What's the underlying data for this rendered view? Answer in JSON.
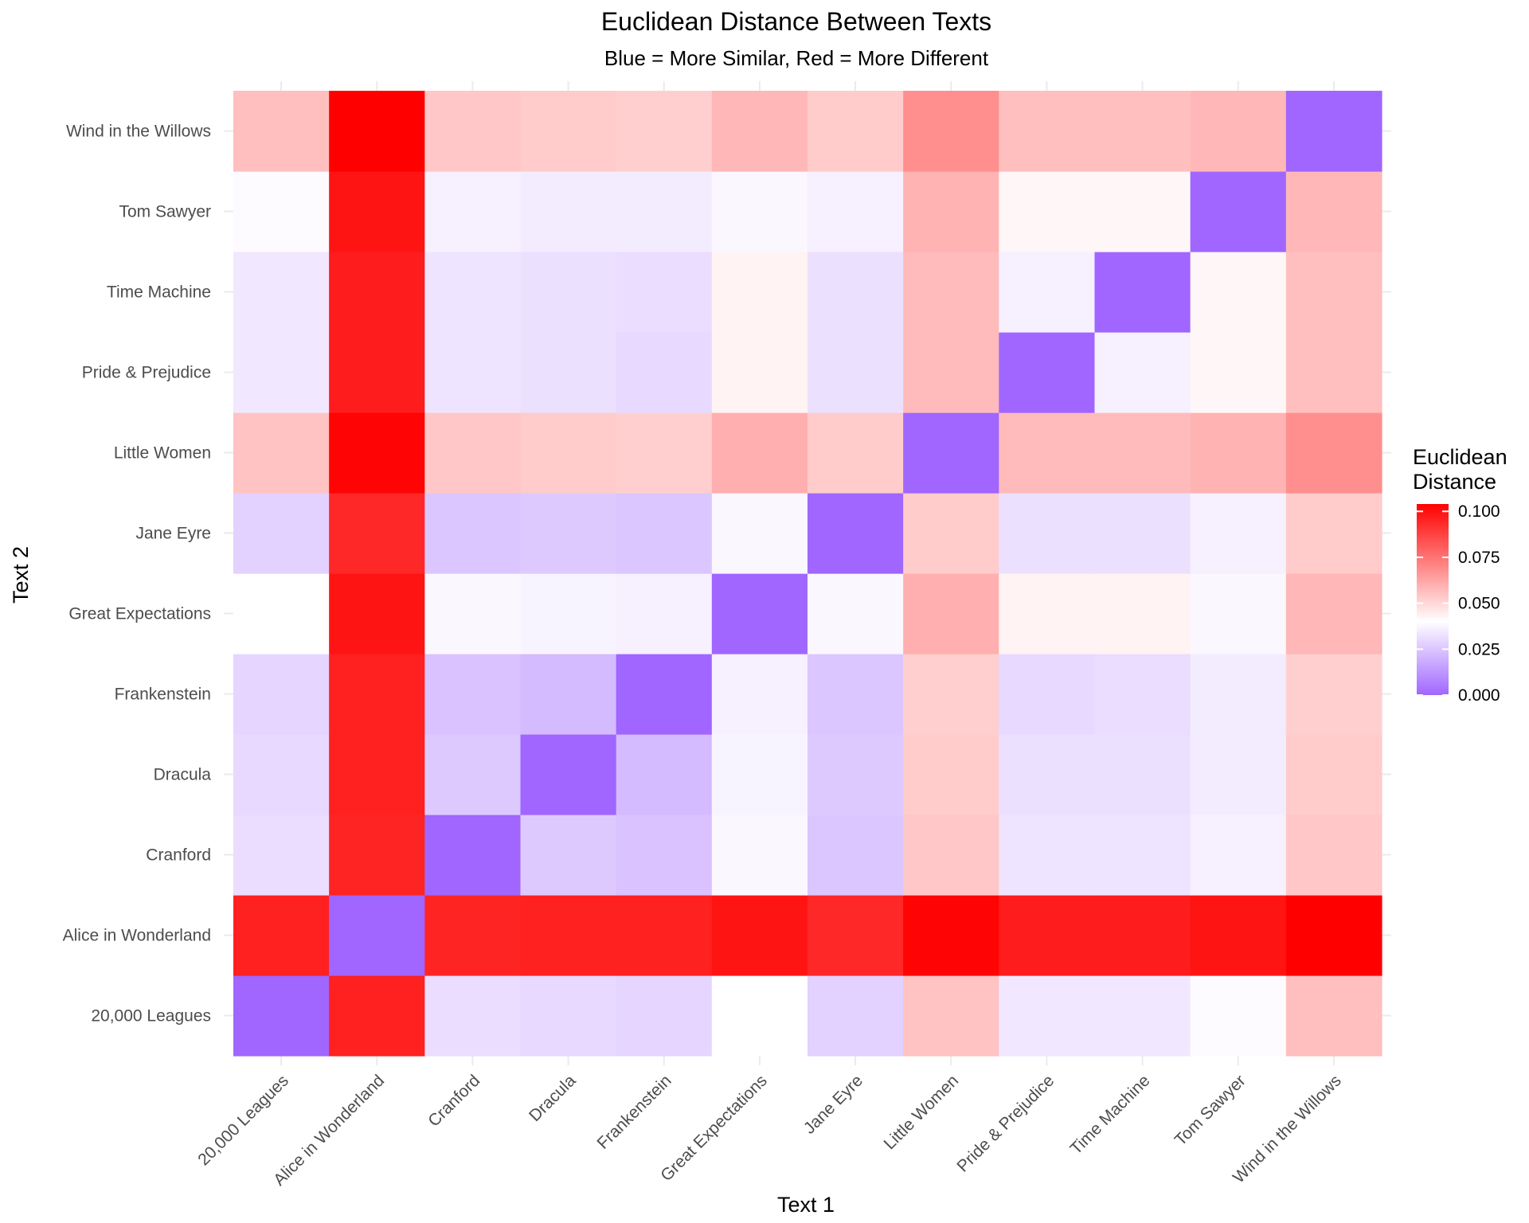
{
  "chart_data": {
    "type": "heatmap",
    "title": "Euclidean Distance Between Texts",
    "subtitle": "Blue = More Similar, Red = More Different",
    "xlabel": "Text 1",
    "ylabel": "Text 2",
    "x_categories": [
      "20,000 Leagues",
      "Alice in Wonderland",
      "Cranford",
      "Dracula",
      "Frankenstein",
      "Great Expectations",
      "Jane Eyre",
      "Little Women",
      "Pride & Prejudice",
      "Time Machine",
      "Tom Sawyer",
      "Wind in the Willows"
    ],
    "y_categories": [
      "20,000 Leagues",
      "Alice in Wonderland",
      "Cranford",
      "Dracula",
      "Frankenstein",
      "Great Expectations",
      "Jane Eyre",
      "Little Women",
      "Pride & Prejudice",
      "Time Machine",
      "Tom Sawyer",
      "Wind in the Willows"
    ],
    "values": [
      [
        0.0,
        0.096,
        0.031,
        0.03,
        0.029,
        0.04,
        0.028,
        0.055,
        0.034,
        0.034,
        0.039,
        0.056
      ],
      [
        0.096,
        0.0,
        0.095,
        0.096,
        0.096,
        0.099,
        0.094,
        0.103,
        0.097,
        0.097,
        0.099,
        0.104
      ],
      [
        0.031,
        0.095,
        0.0,
        0.026,
        0.024,
        0.038,
        0.025,
        0.054,
        0.033,
        0.033,
        0.036,
        0.054
      ],
      [
        0.03,
        0.096,
        0.026,
        0.0,
        0.022,
        0.037,
        0.026,
        0.053,
        0.032,
        0.032,
        0.035,
        0.053
      ],
      [
        0.029,
        0.096,
        0.024,
        0.022,
        0.0,
        0.036,
        0.025,
        0.052,
        0.03,
        0.031,
        0.035,
        0.052
      ],
      [
        0.04,
        0.099,
        0.038,
        0.037,
        0.036,
        0.0,
        0.038,
        0.06,
        0.043,
        0.043,
        0.038,
        0.058
      ],
      [
        0.028,
        0.094,
        0.025,
        0.026,
        0.025,
        0.038,
        0.0,
        0.053,
        0.032,
        0.032,
        0.036,
        0.053
      ],
      [
        0.055,
        0.103,
        0.054,
        0.053,
        0.052,
        0.06,
        0.053,
        0.0,
        0.057,
        0.057,
        0.059,
        0.068
      ],
      [
        0.034,
        0.097,
        0.033,
        0.032,
        0.03,
        0.043,
        0.032,
        0.057,
        0.0,
        0.036,
        0.042,
        0.056
      ],
      [
        0.034,
        0.097,
        0.033,
        0.032,
        0.031,
        0.043,
        0.032,
        0.057,
        0.036,
        0.0,
        0.042,
        0.056
      ],
      [
        0.039,
        0.099,
        0.036,
        0.035,
        0.035,
        0.038,
        0.036,
        0.059,
        0.042,
        0.042,
        0.0,
        0.058
      ],
      [
        0.056,
        0.104,
        0.054,
        0.053,
        0.052,
        0.058,
        0.053,
        0.068,
        0.056,
        0.056,
        0.058,
        0.0
      ]
    ],
    "color_scale": {
      "low": "#a066ff",
      "mid": "#ffffff",
      "high": "#ff0000",
      "midpoint": 0.04,
      "limits": [
        0,
        0.104
      ]
    },
    "legend": {
      "title_line1": "Euclidean",
      "title_line2": "Distance",
      "ticks": [
        "0.000",
        "0.025",
        "0.050",
        "0.075",
        "0.100"
      ],
      "tick_values": [
        0,
        0.025,
        0.05,
        0.075,
        0.1
      ],
      "placement": "right"
    },
    "grid": true
  }
}
